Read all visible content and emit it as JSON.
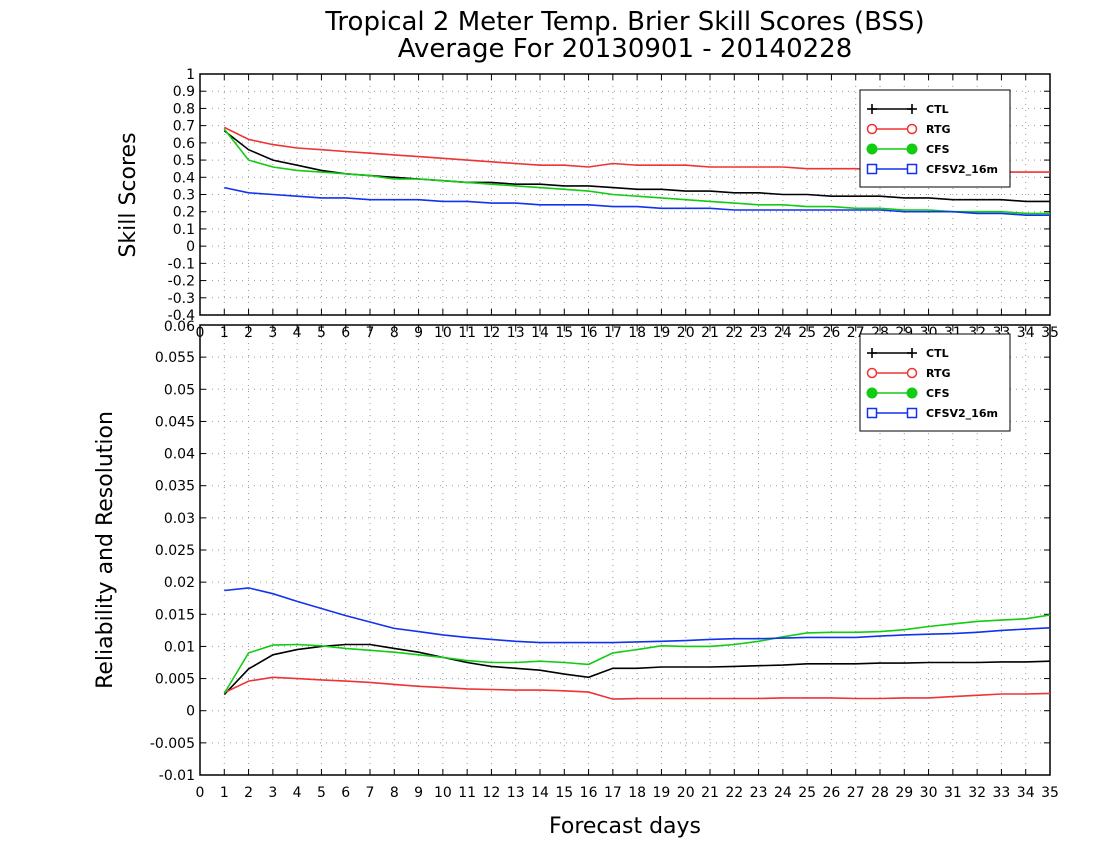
{
  "title_line1": "Tropical 2 Meter Temp. Brier Skill Scores (BSS)",
  "title_line2": "Average For 20130901 - 20140228",
  "colors": {
    "CTL": "#000000",
    "RTG": "#ee3333",
    "CFS": "#11cc11",
    "CFSV2_16m": "#1133ee",
    "grid": "#999999"
  },
  "chart_data": [
    {
      "type": "line",
      "ylabel": "Skill Scores",
      "xlabel": "",
      "xlim": [
        0,
        35
      ],
      "ylim": [
        -0.4,
        1
      ],
      "xticks": [
        0,
        1,
        2,
        3,
        4,
        5,
        6,
        7,
        8,
        9,
        10,
        11,
        12,
        13,
        14,
        15,
        16,
        17,
        18,
        19,
        20,
        21,
        22,
        23,
        24,
        25,
        26,
        27,
        28,
        29,
        30,
        31,
        32,
        33,
        34,
        35
      ],
      "yticks": [
        -0.4,
        -0.3,
        -0.2,
        -0.1,
        0,
        0.1,
        0.2,
        0.3,
        0.4,
        0.5,
        0.6,
        0.7,
        0.8,
        0.9,
        1
      ],
      "ytick_labels": [
        "-0.4",
        "-0.3",
        "-0.2",
        "-0.1",
        "0",
        "0.1",
        "0.2",
        "0.3",
        "0.4",
        "0.5",
        "0.6",
        "0.7",
        "0.8",
        "0.9",
        "1"
      ],
      "grid": true,
      "legend_position": "top-right",
      "x": [
        1,
        2,
        3,
        4,
        5,
        6,
        7,
        8,
        9,
        10,
        11,
        12,
        13,
        14,
        15,
        16,
        17,
        18,
        19,
        20,
        21,
        22,
        23,
        24,
        25,
        26,
        27,
        28,
        29,
        30,
        31,
        32,
        33,
        34,
        35
      ],
      "series": [
        {
          "name": "CTL",
          "marker": "plus",
          "values": [
            0.67,
            0.56,
            0.5,
            0.47,
            0.44,
            0.42,
            0.41,
            0.4,
            0.39,
            0.38,
            0.37,
            0.37,
            0.36,
            0.36,
            0.35,
            0.35,
            0.34,
            0.33,
            0.33,
            0.32,
            0.32,
            0.31,
            0.31,
            0.3,
            0.3,
            0.29,
            0.29,
            0.29,
            0.28,
            0.28,
            0.27,
            0.27,
            0.27,
            0.26,
            0.26
          ]
        },
        {
          "name": "RTG",
          "marker": "open-circle",
          "values": [
            0.69,
            0.62,
            0.59,
            0.57,
            0.56,
            0.55,
            0.54,
            0.53,
            0.52,
            0.51,
            0.5,
            0.49,
            0.48,
            0.47,
            0.47,
            0.46,
            0.48,
            0.47,
            0.47,
            0.47,
            0.46,
            0.46,
            0.46,
            0.46,
            0.45,
            0.45,
            0.45,
            0.44,
            0.44,
            0.43,
            0.43,
            0.43,
            0.43,
            0.43,
            0.43
          ]
        },
        {
          "name": "CFS",
          "marker": "filled-circle",
          "values": [
            0.68,
            0.5,
            0.46,
            0.44,
            0.43,
            0.42,
            0.41,
            0.39,
            0.39,
            0.38,
            0.37,
            0.36,
            0.35,
            0.34,
            0.33,
            0.32,
            0.3,
            0.29,
            0.28,
            0.27,
            0.26,
            0.25,
            0.24,
            0.24,
            0.23,
            0.23,
            0.22,
            0.22,
            0.21,
            0.21,
            0.2,
            0.2,
            0.2,
            0.19,
            0.19
          ]
        },
        {
          "name": "CFSV2_16m",
          "marker": "open-square",
          "values": [
            0.34,
            0.31,
            0.3,
            0.29,
            0.28,
            0.28,
            0.27,
            0.27,
            0.27,
            0.26,
            0.26,
            0.25,
            0.25,
            0.24,
            0.24,
            0.24,
            0.23,
            0.23,
            0.22,
            0.22,
            0.22,
            0.21,
            0.21,
            0.21,
            0.21,
            0.21,
            0.21,
            0.21,
            0.2,
            0.2,
            0.2,
            0.19,
            0.19,
            0.18,
            0.18
          ]
        }
      ],
      "overflow_axis_labels": {
        "y": [
          "0.06"
        ]
      }
    },
    {
      "type": "line",
      "ylabel": "Reliability and Resolution",
      "xlabel": "Forecast days",
      "xlim": [
        0,
        35
      ],
      "ylim": [
        -0.01,
        0.06
      ],
      "xticks": [
        0,
        1,
        2,
        3,
        4,
        5,
        6,
        7,
        8,
        9,
        10,
        11,
        12,
        13,
        14,
        15,
        16,
        17,
        18,
        19,
        20,
        21,
        22,
        23,
        24,
        25,
        26,
        27,
        28,
        29,
        30,
        31,
        32,
        33,
        34,
        35
      ],
      "yticks": [
        -0.01,
        -0.005,
        0,
        0.005,
        0.01,
        0.015,
        0.02,
        0.025,
        0.03,
        0.035,
        0.04,
        0.045,
        0.05,
        0.055,
        0.06
      ],
      "ytick_labels": [
        "-0.01",
        "-0.005",
        "0",
        "0.005",
        "0.01",
        "0.015",
        "0.02",
        "0.025",
        "0.03",
        "0.035",
        "0.04",
        "0.045",
        "0.05",
        "0.055",
        ""
      ],
      "grid": true,
      "legend_position": "top-right",
      "x": [
        1,
        2,
        3,
        4,
        5,
        6,
        7,
        8,
        9,
        10,
        11,
        12,
        13,
        14,
        15,
        16,
        17,
        18,
        19,
        20,
        21,
        22,
        23,
        24,
        25,
        26,
        27,
        28,
        29,
        30,
        31,
        32,
        33,
        34,
        35
      ],
      "series": [
        {
          "name": "CTL",
          "marker": "plus",
          "values": [
            0.0025,
            0.0065,
            0.0087,
            0.0095,
            0.01,
            0.0103,
            0.0103,
            0.0097,
            0.0091,
            0.0083,
            0.0075,
            0.0069,
            0.0066,
            0.0063,
            0.0057,
            0.0052,
            0.0066,
            0.0066,
            0.0068,
            0.0068,
            0.0068,
            0.0069,
            0.007,
            0.0071,
            0.0073,
            0.0073,
            0.0073,
            0.0074,
            0.0074,
            0.0075,
            0.0075,
            0.0075,
            0.0076,
            0.0076,
            0.0077
          ]
        },
        {
          "name": "RTG",
          "marker": "open-circle",
          "values": [
            0.0028,
            0.0046,
            0.0052,
            0.005,
            0.0048,
            0.0046,
            0.0044,
            0.0041,
            0.0038,
            0.0036,
            0.0034,
            0.0033,
            0.0032,
            0.0032,
            0.0031,
            0.0029,
            0.0018,
            0.0019,
            0.0019,
            0.0019,
            0.0019,
            0.0019,
            0.0019,
            0.002,
            0.002,
            0.002,
            0.0019,
            0.0019,
            0.002,
            0.002,
            0.0022,
            0.0024,
            0.0026,
            0.0026,
            0.0027
          ]
        },
        {
          "name": "CFS",
          "marker": "filled-circle",
          "values": [
            0.0027,
            0.009,
            0.0102,
            0.0103,
            0.0101,
            0.0097,
            0.0094,
            0.0091,
            0.0087,
            0.0083,
            0.0078,
            0.0075,
            0.0075,
            0.0077,
            0.0075,
            0.0072,
            0.009,
            0.0095,
            0.0101,
            0.01,
            0.01,
            0.0103,
            0.0108,
            0.0115,
            0.0121,
            0.0122,
            0.0122,
            0.0123,
            0.0126,
            0.0131,
            0.0135,
            0.0139,
            0.0141,
            0.0143,
            0.0149
          ]
        },
        {
          "name": "CFSV2_16m",
          "marker": "open-square",
          "values": [
            0.0187,
            0.0191,
            0.0182,
            0.017,
            0.0159,
            0.0148,
            0.0138,
            0.0128,
            0.0123,
            0.0118,
            0.0114,
            0.0111,
            0.0108,
            0.0106,
            0.0106,
            0.0106,
            0.0106,
            0.0107,
            0.0108,
            0.0109,
            0.0111,
            0.0112,
            0.0112,
            0.0113,
            0.0114,
            0.0114,
            0.0114,
            0.0116,
            0.0118,
            0.0119,
            0.012,
            0.0122,
            0.0125,
            0.0127,
            0.0129
          ]
        }
      ]
    }
  ]
}
